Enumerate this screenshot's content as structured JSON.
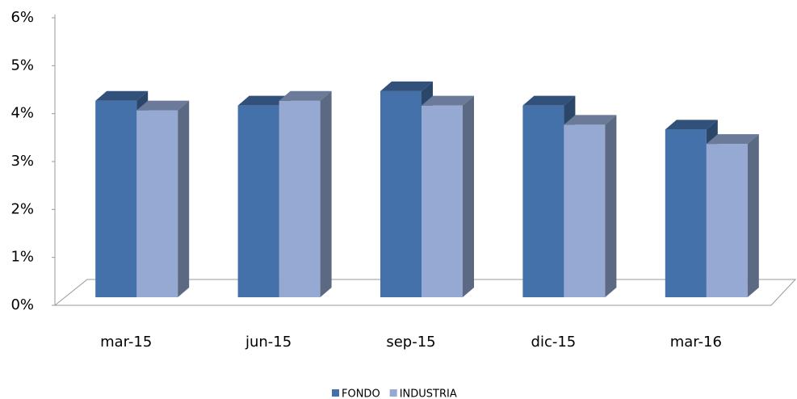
{
  "chart_data": {
    "type": "bar3d",
    "categories": [
      "mar-15",
      "jun-15",
      "sep-15",
      "dic-15",
      "mar-16"
    ],
    "series": [
      {
        "name": "FONDO",
        "color": "#4471a9",
        "values": [
          4.1,
          4.0,
          4.3,
          4.0,
          3.5
        ]
      },
      {
        "name": "INDUSTRIA",
        "color": "#95a9d3",
        "values": [
          3.9,
          4.1,
          4.0,
          3.6,
          3.2
        ]
      }
    ],
    "ylim": [
      0,
      6
    ],
    "yticks": [
      {
        "value": 0,
        "label": "0%"
      },
      {
        "value": 1,
        "label": "1%"
      },
      {
        "value": 2,
        "label": "2%"
      },
      {
        "value": 3,
        "label": "3%"
      },
      {
        "value": 4,
        "label": "4%"
      },
      {
        "value": 5,
        "label": "5%"
      },
      {
        "value": 6,
        "label": "6%"
      }
    ],
    "legend": "bottom"
  }
}
